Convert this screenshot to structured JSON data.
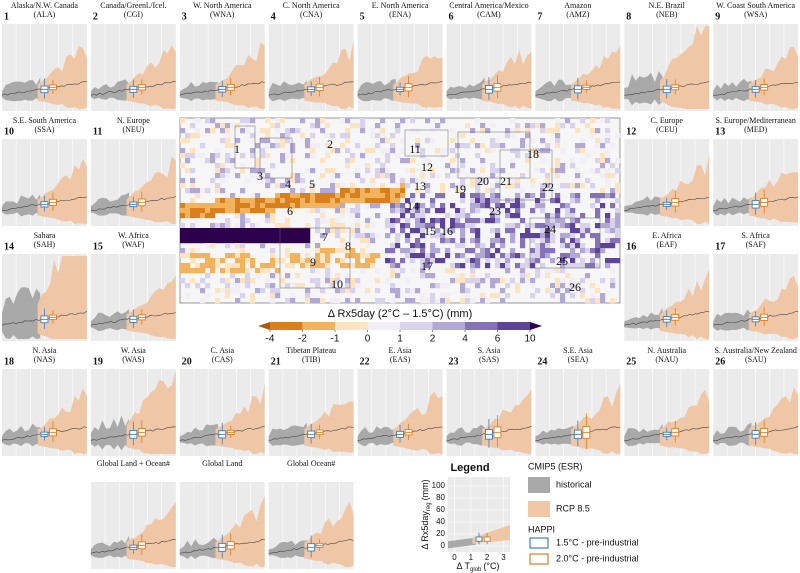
{
  "panels": [
    {
      "number": "1",
      "name": "Alaska/N.W. Canada",
      "code": "(ALA)"
    },
    {
      "number": "2",
      "name": "Canada/Greenl./Icel.",
      "code": "(CGI)"
    },
    {
      "number": "3",
      "name": "W. North America",
      "code": "(WNA)"
    },
    {
      "number": "4",
      "name": "C. North America",
      "code": "(CNA)"
    },
    {
      "number": "5",
      "name": "E. North America",
      "code": "(ENA)"
    },
    {
      "number": "6",
      "name": "Central America/Mexico",
      "code": "(CAM)"
    },
    {
      "number": "7",
      "name": "Amazon",
      "code": "(AMZ)"
    },
    {
      "number": "8",
      "name": "N.E. Brazil",
      "code": "(NEB)"
    },
    {
      "number": "9",
      "name": "W. Coast South America",
      "code": "(WSA)"
    },
    {
      "number": "10",
      "name": "S.E. South America",
      "code": "(SSA)"
    },
    {
      "number": "11",
      "name": "N. Europe",
      "code": "(NEU)"
    },
    {
      "number": "12",
      "name": "C. Europe",
      "code": "(CEU)"
    },
    {
      "number": "13",
      "name": "S. Europe/Mediterranean",
      "code": "(MED)"
    },
    {
      "number": "14",
      "name": "Sahara",
      "code": "(SAH)"
    },
    {
      "number": "15",
      "name": "W. Africa",
      "code": "(WAF)"
    },
    {
      "number": "16",
      "name": "E. Africa",
      "code": "(EAF)"
    },
    {
      "number": "17",
      "name": "S. Africa",
      "code": "(SAF)"
    },
    {
      "number": "18",
      "name": "N. Asia",
      "code": "(NAS)"
    },
    {
      "number": "19",
      "name": "W. Asia",
      "code": "(WAS)"
    },
    {
      "number": "20",
      "name": "C. Asia",
      "code": "(CAS)"
    },
    {
      "number": "21",
      "name": "Tibetan Plateau",
      "code": "(TIB)"
    },
    {
      "number": "22",
      "name": "E. Asia",
      "code": "(EAS)"
    },
    {
      "number": "23",
      "name": "S. Asia",
      "code": "(SAS)"
    },
    {
      "number": "24",
      "name": "S.E. Asia",
      "code": "(SEA)"
    },
    {
      "number": "25",
      "name": "N. Australia",
      "code": "(NAU)"
    },
    {
      "number": "26",
      "name": "S. Australia/New Zealand",
      "code": "(SAU)"
    }
  ],
  "global_panels": [
    {
      "name": "Global Land + Ocean#"
    },
    {
      "name": "Global Land"
    },
    {
      "name": "Global Ocean#"
    }
  ],
  "colorbar": {
    "label": "Δ Rx5day (2°C – 1.5°C) (mm)",
    "ticks": [
      -4,
      -2,
      -1,
      0,
      1,
      2,
      4,
      6,
      10
    ],
    "colors": [
      "#b35806",
      "#d9801c",
      "#f2b35f",
      "#fde3c0",
      "#f1eef6",
      "#d8d2ea",
      "#b2a8d4",
      "#8673b5",
      "#5e4496",
      "#2d004b"
    ]
  },
  "legend": {
    "title": "Legend",
    "y_label": "Δ Rx5day",
    "y_label_sub": "reg",
    "y_label_unit": "(mm)",
    "x_label": "Δ T",
    "x_label_sub": "glob",
    "x_label_unit": "(°C)",
    "yticks": [
      0,
      20,
      40,
      60,
      80,
      100
    ],
    "ylim": [
      -10,
      115
    ],
    "xticks": [
      0,
      1,
      2,
      3
    ],
    "xlim": [
      -0.4,
      3.4
    ],
    "group1": "CMIP5 (ESR)",
    "historical": "historical",
    "rcp": "RCP 8.5",
    "group2": "HAPPI",
    "happi15": "1.5°C - pre-industrial",
    "happi20": "2.0°C - pre-industrial",
    "colors": {
      "historical": "#a9a9a9",
      "rcp": "#f0c7a6",
      "happi15": "#3f7fc0",
      "happi20": "#e07b1f"
    }
  }
}
